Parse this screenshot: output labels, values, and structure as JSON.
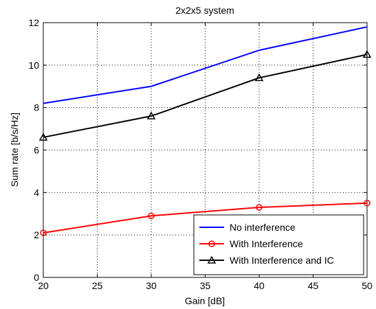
{
  "chart_data": {
    "type": "line",
    "title": "2x2x5 system",
    "xlabel": "Gain [dB]",
    "ylabel": "Sum rate [b/s/Hz]",
    "xlim": [
      20,
      50
    ],
    "ylim": [
      0,
      12
    ],
    "xticks": [
      20,
      25,
      30,
      35,
      40,
      45,
      50
    ],
    "yticks": [
      0,
      2,
      4,
      6,
      8,
      10,
      12
    ],
    "grid": true,
    "legend_position": "bottom-right",
    "x": [
      20,
      30,
      40,
      50
    ],
    "series": [
      {
        "name": "No interference",
        "values": [
          8.2,
          9.0,
          10.7,
          11.8
        ],
        "color": "#0000ff",
        "marker": "none"
      },
      {
        "name": "With Interference",
        "values": [
          2.1,
          2.9,
          3.3,
          3.5
        ],
        "color": "#ff0000",
        "marker": "circle"
      },
      {
        "name": "With Interference and IC",
        "values": [
          6.6,
          7.6,
          9.4,
          10.5
        ],
        "color": "#000000",
        "marker": "triangle"
      }
    ]
  }
}
